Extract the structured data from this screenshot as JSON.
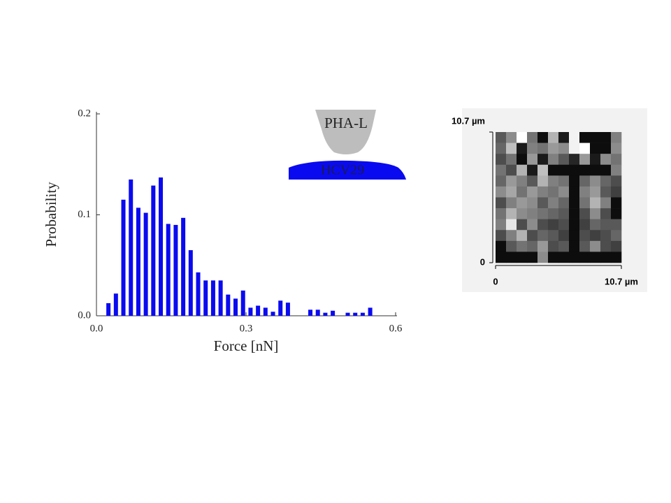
{
  "chart_data": [
    {
      "type": "bar",
      "x_label": "Force [nN]",
      "y_label": "Probability",
      "annotations": [
        "PHA-L",
        "HCV29"
      ],
      "x": [
        0.024,
        0.039,
        0.054,
        0.069,
        0.084,
        0.099,
        0.114,
        0.129,
        0.144,
        0.159,
        0.174,
        0.189,
        0.204,
        0.219,
        0.234,
        0.249,
        0.264,
        0.279,
        0.294,
        0.309,
        0.324,
        0.339,
        0.354,
        0.369,
        0.384,
        0.429,
        0.444,
        0.459,
        0.474,
        0.504,
        0.519,
        0.534,
        0.549
      ],
      "values": [
        0.0125,
        0.022,
        0.115,
        0.135,
        0.107,
        0.102,
        0.129,
        0.137,
        0.091,
        0.09,
        0.097,
        0.065,
        0.043,
        0.035,
        0.035,
        0.035,
        0.021,
        0.017,
        0.025,
        0.008,
        0.01,
        0.008,
        0.004,
        0.015,
        0.013,
        0.006,
        0.006,
        0.003,
        0.005,
        0.003,
        0.003,
        0.003,
        0.008
      ],
      "color": "#0a0af0",
      "xlim": [
        0,
        0.6
      ],
      "xticks": [
        {
          "value": 0,
          "label": "0.0"
        },
        0.3,
        0.6
      ],
      "ylim": [
        0,
        0.2
      ],
      "yticks": [
        {
          "value": 0,
          "label": "0.0"
        },
        0.1,
        0.2
      ]
    },
    {
      "type": "heatmap",
      "colormap": "gray",
      "values": [
        [
          0.35,
          0.55,
          1.0,
          0.45,
          0.05,
          0.7,
          0.1,
          0.95,
          0.05,
          0.05,
          0.05,
          0.5
        ],
        [
          0.4,
          0.75,
          0.1,
          0.5,
          0.45,
          0.6,
          0.55,
          0.95,
          1.0,
          0.05,
          0.05,
          0.55
        ],
        [
          0.3,
          0.45,
          0.05,
          0.6,
          0.1,
          0.5,
          0.35,
          0.15,
          0.6,
          0.1,
          0.55,
          0.45
        ],
        [
          0.45,
          0.3,
          0.7,
          0.1,
          0.75,
          0.05,
          0.05,
          0.05,
          0.05,
          0.05,
          0.05,
          0.5
        ],
        [
          0.4,
          0.6,
          0.5,
          0.35,
          0.7,
          0.5,
          0.45,
          0.05,
          0.4,
          0.55,
          0.4,
          0.3
        ],
        [
          0.55,
          0.65,
          0.45,
          0.6,
          0.5,
          0.45,
          0.55,
          0.05,
          0.5,
          0.6,
          0.35,
          0.25
        ],
        [
          0.3,
          0.5,
          0.6,
          0.55,
          0.35,
          0.5,
          0.4,
          0.05,
          0.45,
          0.7,
          0.5,
          0.05
        ],
        [
          0.45,
          0.7,
          0.55,
          0.5,
          0.45,
          0.4,
          0.35,
          0.05,
          0.3,
          0.55,
          0.3,
          0.05
        ],
        [
          0.5,
          0.9,
          0.3,
          0.55,
          0.3,
          0.25,
          0.3,
          0.05,
          0.25,
          0.4,
          0.35,
          0.35
        ],
        [
          0.3,
          0.5,
          0.7,
          0.3,
          0.4,
          0.35,
          0.25,
          0.05,
          0.3,
          0.25,
          0.3,
          0.4
        ],
        [
          0.05,
          0.35,
          0.45,
          0.4,
          0.6,
          0.3,
          0.35,
          0.05,
          0.35,
          0.55,
          0.3,
          0.25
        ],
        [
          0.05,
          0.05,
          0.05,
          0.05,
          0.55,
          0.05,
          0.05,
          0.05,
          0.05,
          0.05,
          0.05,
          0.05
        ]
      ],
      "xlim": [
        0,
        10.7
      ],
      "xticks": [
        0,
        {
          "value": 10.7,
          "label": "10.7 µm"
        }
      ],
      "ylim": [
        0,
        10.7
      ],
      "yticks": [
        0,
        {
          "value": 10.7,
          "label": "10.7 µm"
        }
      ]
    }
  ]
}
